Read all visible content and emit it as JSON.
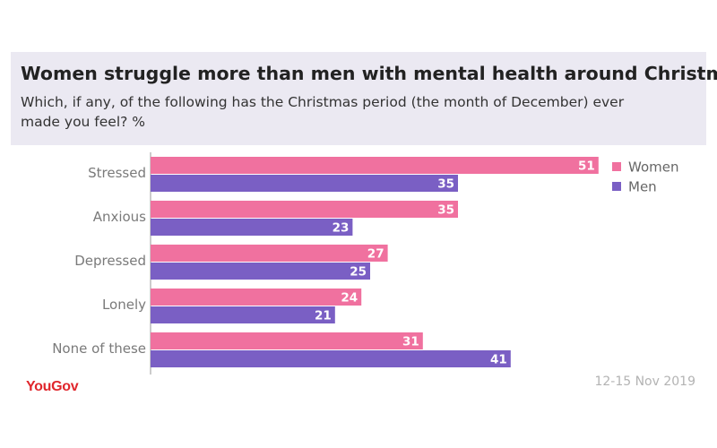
{
  "header": {
    "title": "Women struggle more than men with mental health around Christmas",
    "subtitle": "Which, if any, of the following has the Christmas period (the month of December) ever made you feel? %"
  },
  "footer": {
    "brand": "YouGov",
    "date": "12-15 Nov 2019"
  },
  "colors": {
    "women": "#f0719f",
    "men": "#7a5fc4",
    "axis": "#999999"
  },
  "chart_data": {
    "type": "bar",
    "orientation": "horizontal",
    "categories": [
      "Stressed",
      "Anxious",
      "Depressed",
      "Lonely",
      "None of these"
    ],
    "series": [
      {
        "name": "Women",
        "values": [
          51,
          35,
          27,
          24,
          31
        ]
      },
      {
        "name": "Men",
        "values": [
          35,
          23,
          25,
          21,
          41
        ]
      }
    ],
    "xlim": [
      0,
      51
    ],
    "legend": "top-right",
    "grid": false
  }
}
